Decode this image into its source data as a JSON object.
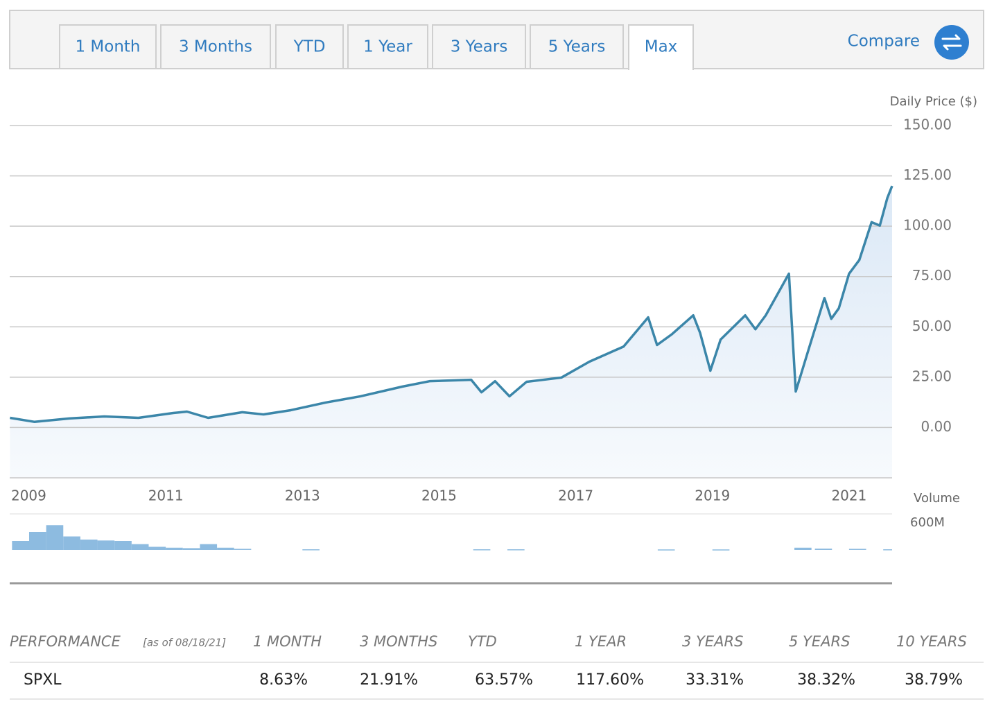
{
  "tabs": [
    {
      "label": "1 Month",
      "selected": false
    },
    {
      "label": "3 Months",
      "selected": false
    },
    {
      "label": "YTD",
      "selected": false
    },
    {
      "label": "1 Year",
      "selected": false
    },
    {
      "label": "3 Years",
      "selected": false
    },
    {
      "label": "5 Years",
      "selected": false
    },
    {
      "label": "Max",
      "selected": true
    }
  ],
  "compare": "Compare",
  "chart_data": [
    {
      "type": "line",
      "y_axis_label": "Daily Price ($)",
      "color": "#3b86a9",
      "x": [
        2008.72,
        2009.08,
        2009.59,
        2010.1,
        2010.6,
        2011.11,
        2011.31,
        2011.62,
        2012.12,
        2012.43,
        2012.83,
        2013.34,
        2013.85,
        2014.46,
        2014.86,
        2015.47,
        2015.62,
        2015.82,
        2016.03,
        2016.28,
        2016.79,
        2017.2,
        2017.7,
        2018.06,
        2018.19,
        2018.41,
        2018.72,
        2018.82,
        2018.97,
        2019.12,
        2019.48,
        2019.63,
        2019.78,
        2020.12,
        2020.22,
        2020.39,
        2020.64,
        2020.74,
        2020.85,
        2021,
        2021.15,
        2021.33,
        2021.45,
        2021.56,
        2021.63
      ],
      "values": [
        4.8,
        2.8,
        4.5,
        5.5,
        4.8,
        7.2,
        7.9,
        4.8,
        7.6,
        6.5,
        8.6,
        12.4,
        15.5,
        20.3,
        23,
        23.7,
        17.5,
        23,
        15.5,
        22.7,
        24.8,
        32.7,
        40.2,
        54.7,
        41,
        46.4,
        55.7,
        47,
        28.2,
        43.7,
        55.7,
        48.8,
        55.7,
        76.4,
        17.9,
        36.8,
        64.3,
        54,
        59.2,
        76.4,
        83.2,
        102,
        100.3,
        114,
        120
      ],
      "xlim": [
        2008.716,
        2021.63
      ],
      "xticks": [
        2009,
        2011,
        2013,
        2015,
        2017,
        2019,
        2021
      ],
      "ylim": [
        -25,
        150
      ],
      "yticks": [
        {
          "value": 0,
          "label": "0.00"
        },
        {
          "value": 25,
          "label": "25.00"
        },
        {
          "value": 50,
          "label": "50.00"
        },
        {
          "value": 75,
          "label": "75.00"
        },
        {
          "value": 100,
          "label": "100.00"
        },
        {
          "value": 125,
          "label": "125.00"
        },
        {
          "value": 150,
          "label": "150.00"
        }
      ],
      "grid": true
    },
    {
      "type": "bar",
      "y_axis_label": "Volume",
      "color": "#8dbbe0",
      "x": [
        2008.75,
        2009.0,
        2009.25,
        2009.5,
        2009.75,
        2010.0,
        2010.25,
        2010.5,
        2010.75,
        2011.0,
        2011.25,
        2011.5,
        2011.75,
        2012.0,
        2013.0,
        2015.5,
        2016.0,
        2018.2,
        2019.0,
        2020.2,
        2020.5,
        2021.0,
        2021.5
      ],
      "values": [
        200000000,
        400000000,
        550000000,
        300000000,
        230000000,
        210000000,
        200000000,
        130000000,
        70000000,
        50000000,
        40000000,
        130000000,
        50000000,
        25000000,
        15000000,
        15000000,
        15000000,
        12000000,
        12000000,
        50000000,
        30000000,
        25000000,
        15000000
      ],
      "xlim": [
        2008.716,
        2021.63
      ],
      "ylim": [
        0,
        600000000
      ],
      "yticks": [
        {
          "value": 600000000,
          "label": "600M"
        }
      ]
    }
  ],
  "performance": {
    "title": "PERFORMANCE",
    "as_of": "[as of 08/18/21]",
    "columns": [
      "1 MONTH",
      "3 MONTHS",
      "YTD",
      "1 YEAR",
      "3 YEARS",
      "5 YEARS",
      "10 YEARS"
    ],
    "rows": [
      {
        "name": "SPXL",
        "values": [
          "8.63%",
          "21.91%",
          "63.57%",
          "117.60%",
          "33.31%",
          "38.32%",
          "38.79%"
        ]
      }
    ]
  }
}
